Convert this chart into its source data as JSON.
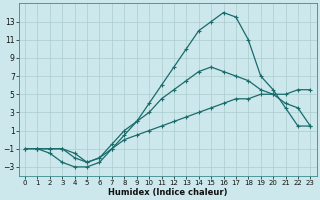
{
  "xlabel": "Humidex (Indice chaleur)",
  "bg_color": "#cce8ec",
  "grid_color": "#aacccc",
  "line_color": "#1a6b6b",
  "xlim": [
    -0.5,
    23.5
  ],
  "ylim": [
    -4,
    15
  ],
  "xticks": [
    0,
    1,
    2,
    3,
    4,
    5,
    6,
    7,
    8,
    9,
    10,
    11,
    12,
    13,
    14,
    15,
    16,
    17,
    18,
    19,
    20,
    21,
    22,
    23
  ],
  "yticks": [
    -3,
    -1,
    1,
    3,
    5,
    7,
    9,
    11,
    13
  ],
  "line1_x": [
    0,
    1,
    2,
    3,
    4,
    5,
    6,
    7,
    8,
    9,
    10,
    11,
    12,
    13,
    14,
    15,
    16,
    17,
    18,
    19,
    20,
    21,
    22,
    23
  ],
  "line1_y": [
    -1,
    -1,
    -1.5,
    -2.5,
    -3,
    -3,
    -2.5,
    -1,
    0,
    0.5,
    1,
    1.5,
    2,
    2.5,
    3,
    3.5,
    4,
    4.5,
    4.5,
    5,
    5,
    5,
    5.5,
    5.5
  ],
  "line2_x": [
    1,
    2,
    3,
    4,
    5,
    6,
    7,
    8,
    9,
    10,
    11,
    12,
    13,
    14,
    15,
    16,
    17,
    18,
    19,
    20,
    21,
    22,
    23
  ],
  "line2_y": [
    -1,
    -1,
    -1,
    -1.5,
    -2.5,
    -2,
    -1,
    0.5,
    2,
    4,
    6,
    8,
    10,
    12,
    13,
    14,
    13.5,
    11,
    7,
    5.5,
    3.5,
    1.5,
    1.5
  ],
  "line3_x": [
    0,
    1,
    2,
    3,
    4,
    5,
    6,
    7,
    8,
    9,
    10,
    11,
    12,
    13,
    14,
    15,
    16,
    17,
    18,
    19,
    20,
    21,
    22,
    23
  ],
  "line3_y": [
    -1,
    -1,
    -1,
    -1,
    -2,
    -2.5,
    -2,
    -0.5,
    1,
    2,
    3,
    4.5,
    5.5,
    6.5,
    7.5,
    8,
    7.5,
    7,
    6.5,
    5.5,
    5,
    4,
    3.5,
    1.5
  ]
}
